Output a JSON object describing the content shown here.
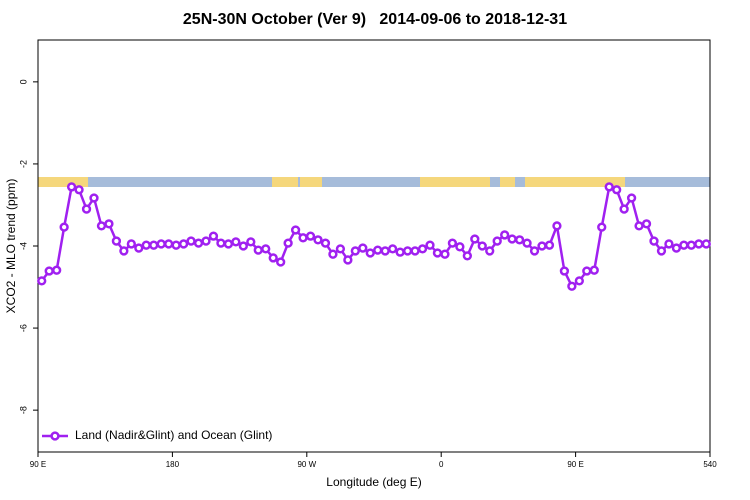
{
  "chart_data": {
    "type": "line",
    "title": "25N-30N October (Ver 9)   2014-09-06 to 2018-12-31",
    "x_label": "Longitude (deg E)",
    "y_label": "XCO2 - MLO trend (ppm)",
    "x": [
      92.5,
      97.5,
      102.5,
      107.5,
      112.5,
      117.5,
      122.5,
      127.5,
      132.5,
      137.5,
      142.5,
      147.5,
      152.5,
      157.5,
      162.5,
      167.5,
      172.5,
      177.5,
      182.5,
      187.5,
      192.5,
      197.5,
      202.5,
      207.5,
      212.5,
      217.5,
      222.5,
      227.5,
      232.5,
      237.5,
      242.5,
      247.5,
      252.5,
      257.5,
      262.5,
      267.5,
      272.5,
      277.5,
      282.5,
      287.5,
      292.5,
      297.5,
      302.5,
      307.5,
      312.5,
      317.5,
      322.5,
      327.5,
      332.5,
      337.5,
      342.5,
      347.5,
      352.5,
      357.5,
      362.5,
      367.5,
      372.5,
      377.5,
      382.5,
      387.5,
      392.5,
      397.5,
      402.5,
      407.5,
      412.5,
      417.5,
      422.5,
      427.5,
      432.5,
      437.5,
      442.5,
      447.5,
      452.5,
      457.5,
      462.5,
      467.5,
      472.5,
      477.5,
      482.5,
      487.5,
      492.5,
      497.5,
      502.5,
      507.5,
      512.5,
      517.5,
      522.5,
      527.5,
      532.5,
      537.5
    ],
    "series": [
      {
        "name": "Land (Nadir&Glint) and Ocean (Glint)",
        "color": "#a020f0",
        "values": [
          -4.85,
          -4.61,
          -4.59,
          -3.54,
          -2.56,
          -2.63,
          -3.1,
          -2.83,
          -3.51,
          -3.46,
          -3.88,
          -4.12,
          -3.95,
          -4.05,
          -3.98,
          -3.98,
          -3.95,
          -3.95,
          -3.98,
          -3.95,
          -3.88,
          -3.93,
          -3.88,
          -3.76,
          -3.93,
          -3.95,
          -3.9,
          -4.0,
          -3.9,
          -4.1,
          -4.07,
          -4.29,
          -4.39,
          -3.93,
          -3.61,
          -3.8,
          -3.76,
          -3.85,
          -3.93,
          -4.2,
          -4.07,
          -4.34,
          -4.12,
          -4.05,
          -4.17,
          -4.1,
          -4.12,
          -4.07,
          -4.15,
          -4.12,
          -4.12,
          -4.07,
          -3.98,
          -4.17,
          -4.2,
          -3.93,
          -4.02,
          -4.24,
          -3.83,
          -4.0,
          -4.12,
          -3.88,
          -3.73,
          -3.83,
          -3.85,
          -3.93,
          -4.12,
          -4.0,
          -3.98,
          -3.51,
          -4.61,
          -4.98,
          -4.85,
          -4.61,
          -4.59,
          -3.54,
          -2.56,
          -2.63,
          -3.1,
          -2.83,
          -3.51,
          -3.46,
          -3.88,
          -4.12,
          -3.95,
          -4.05,
          -3.98,
          -3.98,
          -3.95,
          -3.95
        ]
      }
    ],
    "xlim": [
      90,
      540
    ],
    "xticks": [
      {
        "value": 90,
        "label": "90 E"
      },
      180,
      {
        "value": 270,
        "label": "90 W"
      },
      {
        "value": 360,
        "label": "0"
      },
      {
        "value": 450,
        "label": "90 E"
      },
      540
    ],
    "ylim": [
      -9.02,
      1.02
    ],
    "yticks": [
      0,
      -2,
      -4,
      -6,
      -8
    ],
    "legend": "bottom-left"
  }
}
